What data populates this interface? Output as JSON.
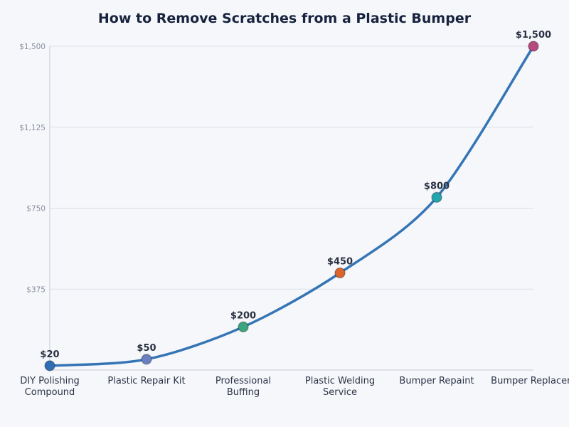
{
  "chart_data": {
    "type": "line",
    "title": "How to Remove Scratches from a Plastic Bumper",
    "xlabel": "",
    "ylabel": "",
    "categories": [
      "DIY Polishing Compound",
      "Plastic Repair Kit",
      "Professional Buffing",
      "Plastic Welding Service",
      "Bumper Repaint",
      "Bumper Replacement"
    ],
    "category_lines": [
      [
        "DIY Polishing",
        "Compound"
      ],
      [
        "Plastic Repair Kit"
      ],
      [
        "Professional",
        "Buffing"
      ],
      [
        "Plastic Welding",
        "Service"
      ],
      [
        "Bumper Repaint"
      ],
      [
        "Bumper Replacem"
      ]
    ],
    "values": [
      20,
      50,
      200,
      450,
      800,
      1500
    ],
    "data_labels": [
      "$20",
      "$50",
      "$200",
      "$450",
      "$800",
      "$1,500"
    ],
    "marker_colors": [
      "#2f6db5",
      "#6a7fc0",
      "#3da57d",
      "#d9642c",
      "#23a5ad",
      "#b54a7e"
    ],
    "line_color": "#3575b5",
    "yticks": [
      375,
      750,
      1125,
      1500
    ],
    "ytick_labels": [
      "$375",
      "$750",
      "$1,125",
      "$1,500"
    ],
    "ylim": [
      0,
      1500
    ],
    "grid": true,
    "legend": "none"
  }
}
